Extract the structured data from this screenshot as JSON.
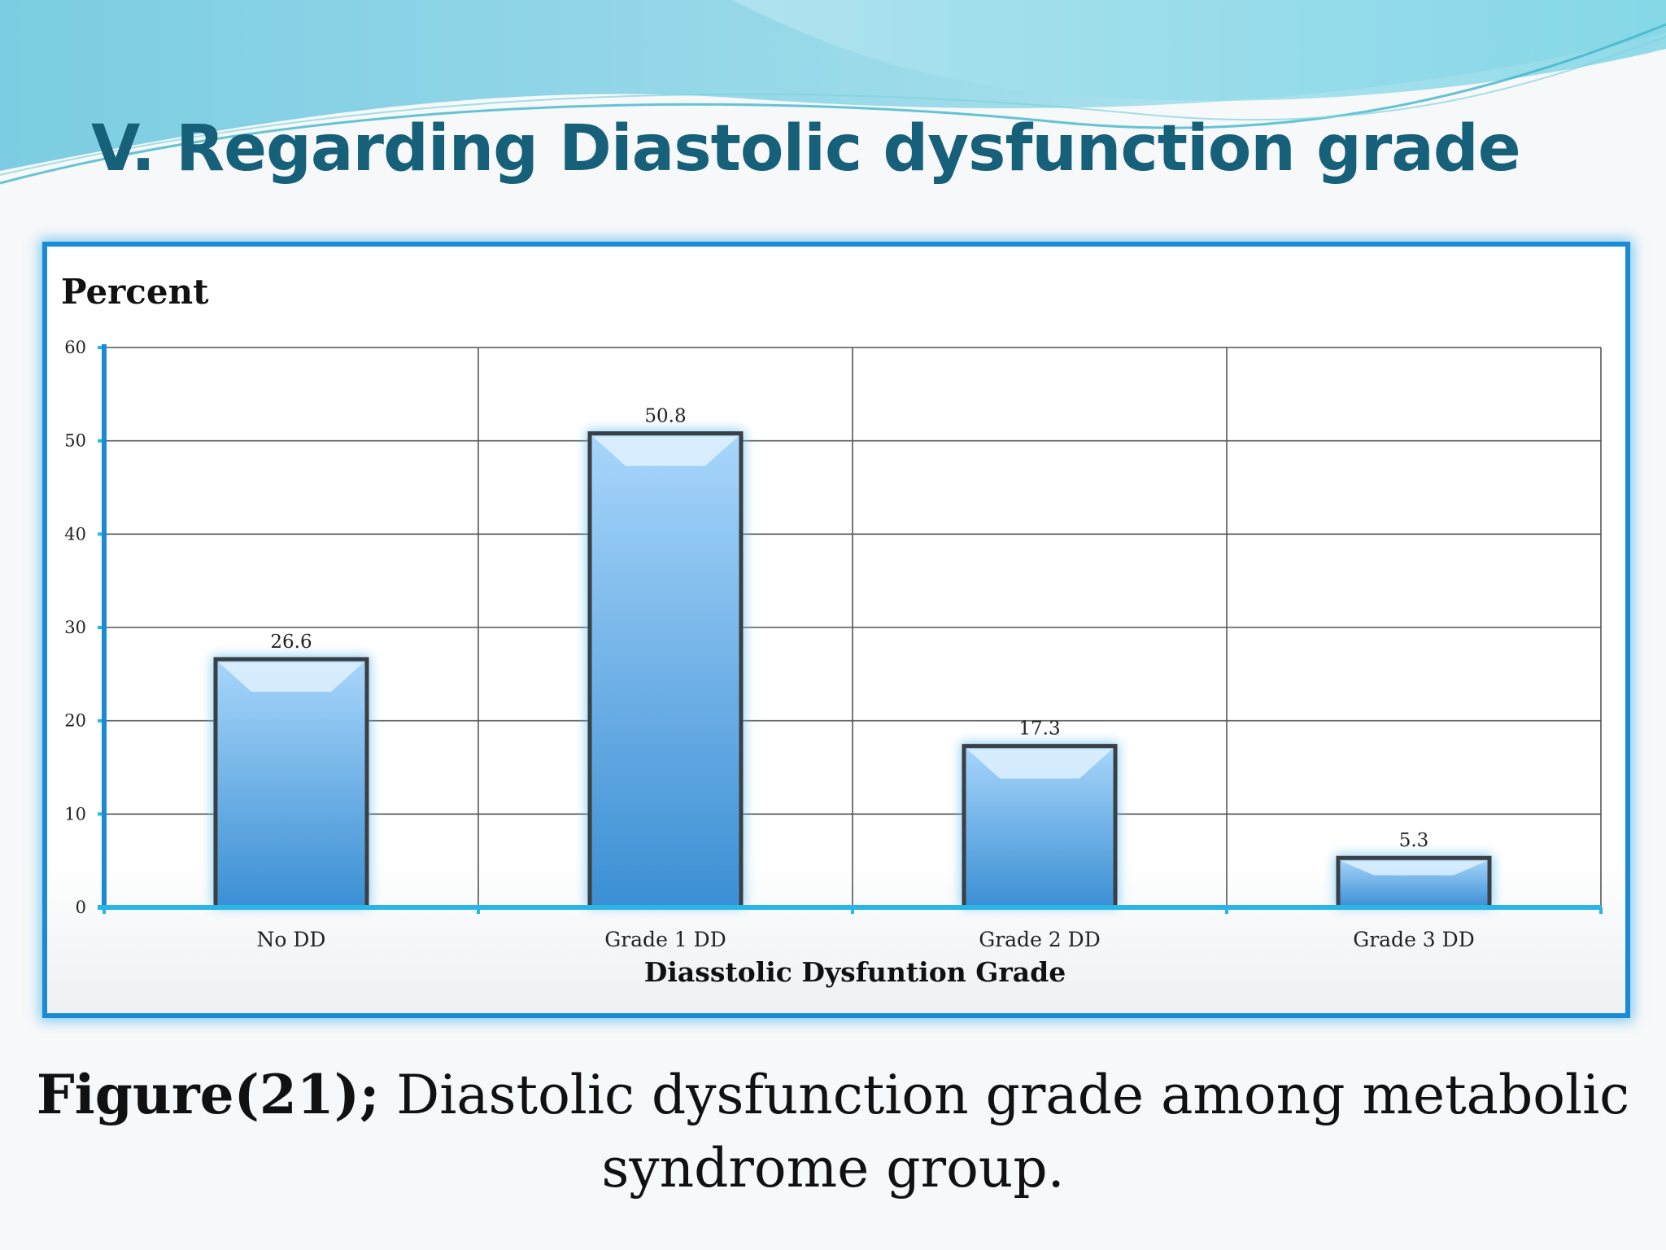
{
  "slide": {
    "title": "V. Regarding Diastolic dysfunction grade",
    "caption_bold": "Figure(21);",
    "caption_rest": " Diastolic dysfunction grade among metabolic syndrome group."
  },
  "colors": {
    "title": "#17607a",
    "frame_border": "#1a8ad4",
    "axis": "#29b6e6",
    "bar_top": "#a8d6fb",
    "bar_bottom": "#3b8fd4",
    "grid": "#555555"
  },
  "chart_data": {
    "type": "bar",
    "categories": [
      "No DD",
      "Grade 1 DD",
      "Grade 2 DD",
      "Grade 3 DD"
    ],
    "values": [
      26.6,
      50.8,
      17.3,
      5.3
    ],
    "value_labels": [
      "26.6",
      "50.8",
      "17.3",
      "5.3"
    ],
    "title": "",
    "xlabel": "Diasstolic Dysfuntion Grade",
    "ylabel": "Percent",
    "ylim": [
      0,
      60
    ],
    "yticks": [
      0,
      10,
      20,
      30,
      40,
      50,
      60
    ],
    "grid": true,
    "legend": "none"
  }
}
